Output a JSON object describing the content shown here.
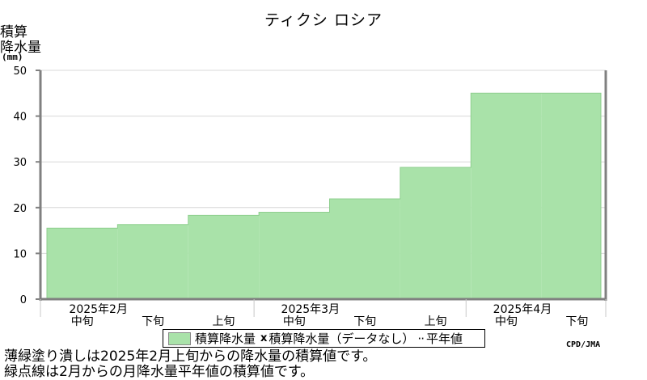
{
  "chart_data": {
    "type": "bar",
    "title": "ティクシ ロシア",
    "ylabel_lines": [
      "積算",
      "降水量"
    ],
    "yunit": "(mm)",
    "ylim": [
      0,
      50
    ],
    "yticks": [
      0,
      10,
      20,
      30,
      40,
      50
    ],
    "categories": [
      "2025年2月 中旬",
      "2025年2月 下旬",
      "2025年3月 上旬",
      "2025年3月 中旬",
      "2025年3月 下旬",
      "2025年4月 上旬",
      "2025年4月 中旬",
      "2025年4月 下旬"
    ],
    "period_labels": [
      "中旬",
      "下旬",
      "上旬",
      "中旬",
      "下旬",
      "上旬",
      "中旬",
      "下旬"
    ],
    "month_labels": [
      "2025年2月",
      "2025年3月",
      "2025年4月"
    ],
    "series": [
      {
        "name": "積算降水量",
        "values": [
          15.5,
          16.3,
          18.3,
          19.0,
          21.9,
          28.8,
          45.0,
          45.0
        ]
      }
    ],
    "bar_color": "#a9e2a9",
    "grid": true,
    "legend": {
      "position": "bottom",
      "entries": [
        "積算降水量",
        "積算降水量（データなし）",
        "平年値"
      ]
    }
  },
  "credit": "CPD/JMA",
  "notes": [
    "薄緑塗り潰しは2025年2月上旬からの降水量の積算値です。",
    "緑点線は2月からの月降水量平年値の積算値です。"
  ]
}
